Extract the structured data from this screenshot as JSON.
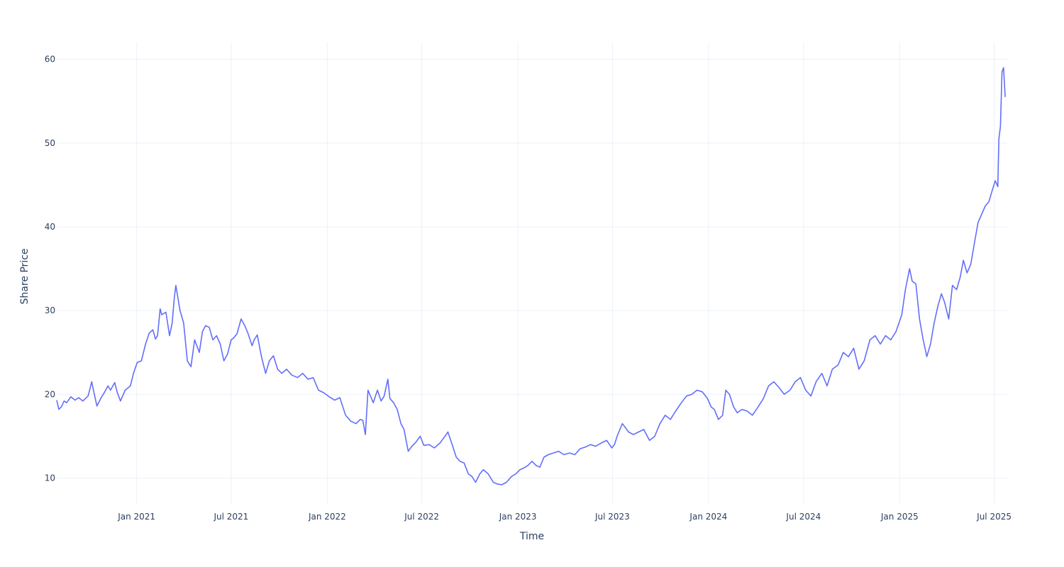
{
  "chart_data": {
    "type": "line",
    "title": "",
    "xlabel": "Time",
    "ylabel": "Share Price",
    "xlim": [
      "2020-08-01",
      "2025-07-26"
    ],
    "ylim": [
      7,
      62
    ],
    "grid": true,
    "colors": {
      "series": "#636efa",
      "grid": "#ebf0f8",
      "text": "#2a3f5f"
    },
    "x_ticks": [
      {
        "date": "2021-01-01",
        "label": "Jan 2021"
      },
      {
        "date": "2021-07-01",
        "label": "Jul 2021"
      },
      {
        "date": "2022-01-01",
        "label": "Jan 2022"
      },
      {
        "date": "2022-07-01",
        "label": "Jul 2022"
      },
      {
        "date": "2023-01-01",
        "label": "Jan 2023"
      },
      {
        "date": "2023-07-01",
        "label": "Jul 2023"
      },
      {
        "date": "2024-01-01",
        "label": "Jan 2024"
      },
      {
        "date": "2024-07-01",
        "label": "Jul 2024"
      },
      {
        "date": "2025-01-01",
        "label": "Jan 2025"
      },
      {
        "date": "2025-07-01",
        "label": "Jul 2025"
      }
    ],
    "y_ticks": [
      {
        "value": 10,
        "label": "10"
      },
      {
        "value": 20,
        "label": "20"
      },
      {
        "value": 30,
        "label": "30"
      },
      {
        "value": 40,
        "label": "40"
      },
      {
        "value": 50,
        "label": "50"
      },
      {
        "value": 60,
        "label": "60"
      }
    ],
    "series": [
      {
        "x": [
          "2020-08-01",
          "2020-08-05",
          "2020-08-10",
          "2020-08-15",
          "2020-08-20",
          "2020-08-28",
          "2020-09-05",
          "2020-09-12",
          "2020-09-20",
          "2020-09-30",
          "2020-10-07",
          "2020-10-12",
          "2020-10-17",
          "2020-10-25",
          "2020-11-01",
          "2020-11-07",
          "2020-11-12",
          "2020-11-20",
          "2020-11-25",
          "2020-12-01",
          "2020-12-10",
          "2020-12-20",
          "2020-12-26",
          "2021-01-02",
          "2021-01-10",
          "2021-01-18",
          "2021-01-25",
          "2021-02-01",
          "2021-02-06",
          "2021-02-10",
          "2021-02-15",
          "2021-02-18",
          "2021-02-26",
          "2021-03-05",
          "2021-03-10",
          "2021-03-14",
          "2021-03-17",
          "2021-03-25",
          "2021-04-01",
          "2021-04-08",
          "2021-04-15",
          "2021-04-22",
          "2021-05-01",
          "2021-05-07",
          "2021-05-13",
          "2021-05-20",
          "2021-05-27",
          "2021-06-03",
          "2021-06-10",
          "2021-06-17",
          "2021-06-24",
          "2021-07-01",
          "2021-07-05",
          "2021-07-12",
          "2021-07-20",
          "2021-07-27",
          "2021-08-02",
          "2021-08-10",
          "2021-08-14",
          "2021-08-20",
          "2021-08-28",
          "2021-09-05",
          "2021-09-12",
          "2021-09-20",
          "2021-09-28",
          "2021-10-06",
          "2021-10-15",
          "2021-10-25",
          "2021-11-05",
          "2021-11-15",
          "2021-11-25",
          "2021-12-05",
          "2021-12-15",
          "2021-12-25",
          "2022-01-05",
          "2022-01-15",
          "2022-01-25",
          "2022-02-05",
          "2022-02-15",
          "2022-02-25",
          "2022-03-05",
          "2022-03-10",
          "2022-03-15",
          "2022-03-20",
          "2022-03-30",
          "2022-04-07",
          "2022-04-14",
          "2022-04-20",
          "2022-04-27",
          "2022-05-01",
          "2022-05-08",
          "2022-05-15",
          "2022-05-22",
          "2022-05-28",
          "2022-06-05",
          "2022-06-12",
          "2022-06-20",
          "2022-06-28",
          "2022-07-05",
          "2022-07-15",
          "2022-07-25",
          "2022-08-05",
          "2022-08-12",
          "2022-08-20",
          "2022-08-28",
          "2022-09-05",
          "2022-09-12",
          "2022-09-20",
          "2022-09-28",
          "2022-10-05",
          "2022-10-12",
          "2022-10-20",
          "2022-10-27",
          "2022-11-05",
          "2022-11-15",
          "2022-11-22",
          "2022-12-01",
          "2022-12-10",
          "2022-12-20",
          "2022-12-28",
          "2023-01-05",
          "2023-01-12",
          "2023-01-20",
          "2023-01-28",
          "2023-02-05",
          "2023-02-12",
          "2023-02-20",
          "2023-02-28",
          "2023-03-10",
          "2023-03-20",
          "2023-03-30",
          "2023-04-10",
          "2023-04-20",
          "2023-04-30",
          "2023-05-10",
          "2023-05-20",
          "2023-05-30",
          "2023-06-10",
          "2023-06-20",
          "2023-06-30",
          "2023-07-05",
          "2023-07-10",
          "2023-07-20",
          "2023-08-01",
          "2023-08-10",
          "2023-08-20",
          "2023-08-30",
          "2023-09-10",
          "2023-09-20",
          "2023-09-30",
          "2023-10-10",
          "2023-10-20",
          "2023-10-30",
          "2023-11-10",
          "2023-11-20",
          "2023-11-30",
          "2023-12-10",
          "2023-12-20",
          "2023-12-30",
          "2024-01-06",
          "2024-01-12",
          "2024-01-20",
          "2024-01-28",
          "2024-02-03",
          "2024-02-10",
          "2024-02-18",
          "2024-02-25",
          "2024-03-05",
          "2024-03-15",
          "2024-03-25",
          "2024-04-05",
          "2024-04-15",
          "2024-04-25",
          "2024-05-05",
          "2024-05-15",
          "2024-05-25",
          "2024-06-05",
          "2024-06-15",
          "2024-06-25",
          "2024-07-05",
          "2024-07-15",
          "2024-07-25",
          "2024-08-05",
          "2024-08-15",
          "2024-08-25",
          "2024-09-05",
          "2024-09-15",
          "2024-09-25",
          "2024-10-05",
          "2024-10-15",
          "2024-10-25",
          "2024-11-05",
          "2024-11-15",
          "2024-11-25",
          "2024-12-05",
          "2024-12-15",
          "2024-12-25",
          "2025-01-05",
          "2025-01-12",
          "2025-01-20",
          "2025-01-25",
          "2025-02-01",
          "2025-02-08",
          "2025-02-15",
          "2025-02-22",
          "2025-03-01",
          "2025-03-08",
          "2025-03-15",
          "2025-03-22",
          "2025-03-28",
          "2025-04-05",
          "2025-04-12",
          "2025-04-20",
          "2025-04-27",
          "2025-05-03",
          "2025-05-10",
          "2025-05-17",
          "2025-05-24",
          "2025-05-31",
          "2025-06-07",
          "2025-06-14",
          "2025-06-21",
          "2025-06-28",
          "2025-07-03",
          "2025-07-08",
          "2025-07-10",
          "2025-07-13",
          "2025-07-16",
          "2025-07-19",
          "2025-07-22"
        ],
        "y": [
          19.3,
          18.2,
          18.5,
          19.2,
          19.0,
          19.7,
          19.3,
          19.6,
          19.2,
          19.8,
          21.5,
          20.0,
          18.6,
          19.6,
          20.3,
          21.0,
          20.5,
          21.4,
          20.2,
          19.2,
          20.5,
          21.0,
          22.5,
          23.8,
          24.0,
          26.0,
          27.3,
          27.7,
          26.6,
          27.0,
          30.2,
          29.5,
          29.8,
          27.0,
          28.5,
          31.5,
          33.0,
          30.0,
          28.5,
          24.0,
          23.3,
          26.5,
          25.0,
          27.5,
          28.2,
          28.0,
          26.5,
          27.0,
          26.0,
          24.0,
          24.8,
          26.5,
          26.7,
          27.2,
          29.0,
          28.2,
          27.3,
          25.8,
          26.5,
          27.1,
          24.5,
          22.5,
          24.0,
          24.6,
          23.0,
          22.5,
          23.0,
          22.3,
          22.0,
          22.5,
          21.8,
          22.0,
          20.5,
          20.2,
          19.7,
          19.3,
          19.6,
          17.5,
          16.8,
          16.5,
          17.0,
          16.9,
          15.2,
          20.5,
          19.0,
          20.5,
          19.2,
          19.8,
          21.8,
          19.5,
          19.0,
          18.2,
          16.5,
          15.8,
          13.2,
          13.8,
          14.3,
          15.0,
          13.9,
          14.0,
          13.6,
          14.2,
          14.8,
          15.5,
          14.0,
          12.5,
          12.0,
          11.8,
          10.5,
          10.2,
          9.5,
          10.5,
          11.0,
          10.5,
          9.5,
          9.3,
          9.2,
          9.5,
          10.2,
          10.5,
          11.0,
          11.2,
          11.5,
          12.0,
          11.5,
          11.3,
          12.5,
          12.8,
          13.0,
          13.2,
          12.8,
          13.0,
          12.8,
          13.5,
          13.7,
          14.0,
          13.8,
          14.2,
          14.5,
          13.6,
          14.0,
          15.0,
          16.5,
          15.5,
          15.2,
          15.5,
          15.8,
          14.5,
          15.0,
          16.5,
          17.5,
          17.0,
          18.0,
          19.0,
          19.8,
          20.0,
          20.5,
          20.3,
          19.5,
          18.5,
          18.2,
          17.0,
          17.5,
          20.5,
          20.0,
          18.5,
          17.8,
          18.2,
          18.0,
          17.5,
          18.5,
          19.5,
          21.0,
          21.5,
          20.8,
          20.0,
          20.5,
          21.5,
          22.0,
          20.5,
          19.8,
          21.5,
          22.5,
          21.0,
          23.0,
          23.5,
          25.0,
          24.5,
          25.5,
          23.0,
          24.0,
          26.5,
          27.0,
          26.0,
          27.0,
          26.5,
          27.5,
          29.5,
          32.5,
          35.0,
          33.5,
          33.2,
          29.0,
          26.5,
          24.5,
          26.0,
          28.5,
          30.5,
          32.0,
          31.0,
          29.0,
          33.0,
          32.5,
          34.0,
          36.0,
          34.5,
          35.5,
          38.0,
          40.5,
          41.5,
          42.5,
          43.0,
          44.5,
          45.5,
          44.8,
          50.5,
          52.0,
          58.5,
          59.0,
          55.5
        ],
        "name": ""
      }
    ]
  }
}
